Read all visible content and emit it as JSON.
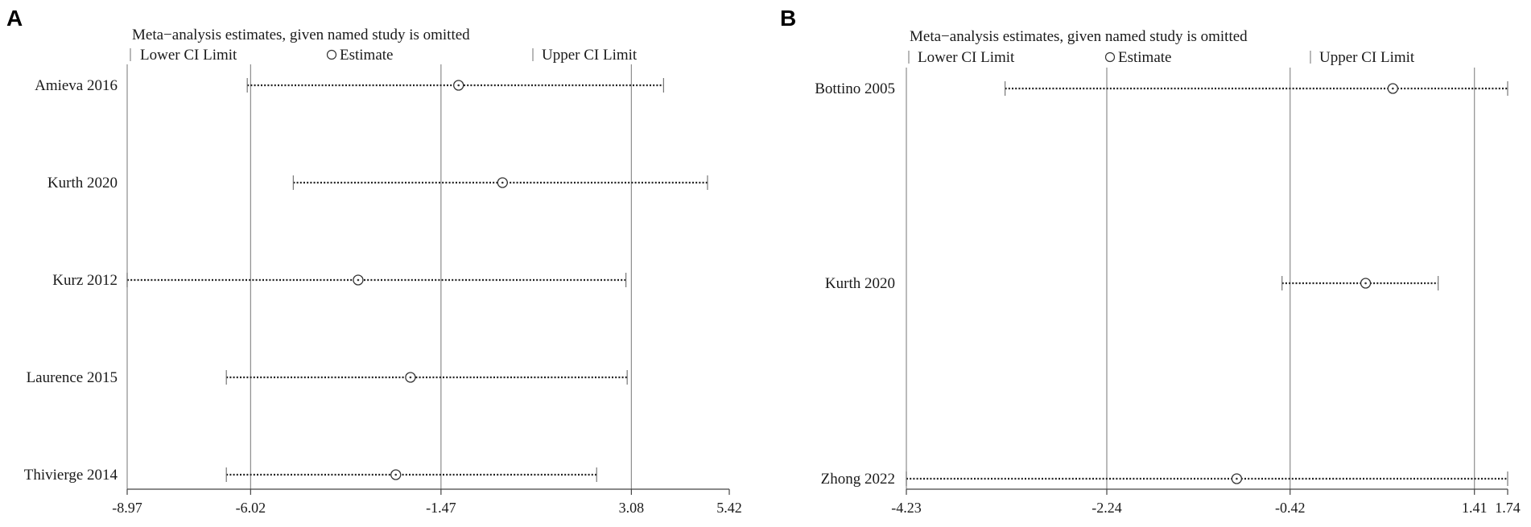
{
  "chart_data": [
    {
      "type": "forest",
      "panel_label": "A",
      "title": "Meta−analysis estimates, given named study is omitted",
      "legend": {
        "lower": "Lower CI Limit",
        "estimate": "Estimate",
        "upper": "Upper CI Limit",
        "placement": "top"
      },
      "studies": [
        {
          "label": "Amieva 2016",
          "lower": -6.1,
          "estimate": -1.05,
          "upper": 3.85
        },
        {
          "label": "Kurth 2020",
          "lower": -5.0,
          "estimate": 0.0,
          "upper": 4.9
        },
        {
          "label": "Kurz 2012",
          "lower": -8.97,
          "estimate": -3.45,
          "upper": 2.95
        },
        {
          "label": "Laurence 2015",
          "lower": -6.6,
          "estimate": -2.2,
          "upper": 2.98
        },
        {
          "label": "Thivierge 2014",
          "lower": -6.6,
          "estimate": -2.55,
          "upper": 2.25
        }
      ],
      "x_ticks": [
        "-8.97",
        "-6.02",
        "-1.47",
        "3.08",
        "5.42"
      ],
      "x_tick_values": [
        -8.97,
        -6.02,
        -1.47,
        3.08,
        5.42
      ],
      "reference_lines": [
        -8.97,
        -6.02,
        -1.47,
        3.08
      ],
      "xlim": [
        -8.97,
        5.42
      ],
      "grid": false
    },
    {
      "type": "forest",
      "panel_label": "B",
      "title": "Meta−analysis estimates, given named study is omitted",
      "legend": {
        "lower": "Lower CI Limit",
        "estimate": "Estimate",
        "upper": "Upper CI Limit",
        "placement": "top"
      },
      "studies": [
        {
          "label": "Bottino 2005",
          "lower": -3.25,
          "estimate": 0.6,
          "upper": 1.74
        },
        {
          "label": "Kurth 2020",
          "lower": -0.5,
          "estimate": 0.33,
          "upper": 1.05
        },
        {
          "label": "Zhong 2022",
          "lower": -4.23,
          "estimate": -0.95,
          "upper": 1.74
        }
      ],
      "x_ticks": [
        "-4.23",
        "-2.24",
        "-0.42",
        "1.41",
        "1.74"
      ],
      "x_tick_values": [
        -4.23,
        -2.24,
        -0.42,
        1.41,
        1.74
      ],
      "reference_lines": [
        -4.23,
        -2.24,
        -0.42,
        1.41
      ],
      "xlim": [
        -4.23,
        1.74
      ],
      "grid": false
    }
  ]
}
